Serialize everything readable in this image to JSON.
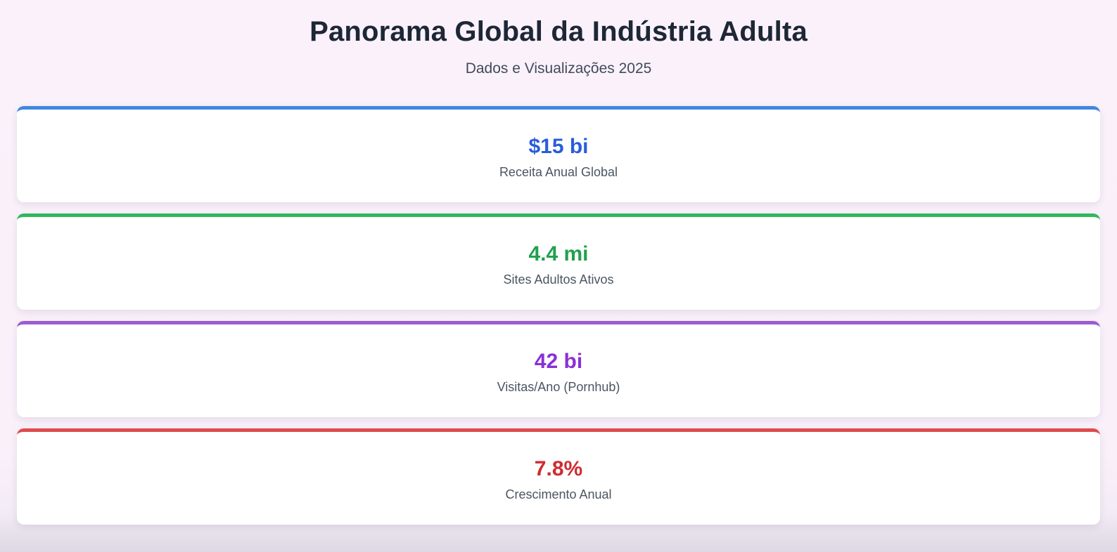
{
  "header": {
    "title": "Panorama Global da Indústria Adulta",
    "subtitle": "Dados e Visualizações 2025"
  },
  "stats": [
    {
      "value": "$15 bi",
      "label": "Receita Anual Global",
      "accent_color": "#4285e0",
      "value_color": "#2a5cdb"
    },
    {
      "value": "4.4 mi",
      "label": "Sites Adultos Ativos",
      "accent_color": "#2eb85c",
      "value_color": "#21a14e"
    },
    {
      "value": "42 bi",
      "label": "Visitas/Ano (Pornhub)",
      "accent_color": "#9d5bd2",
      "value_color": "#8b2fd6"
    },
    {
      "value": "7.8%",
      "label": "Crescimento Anual",
      "accent_color": "#e04b4b",
      "value_color": "#cf2b31"
    }
  ],
  "colors": {
    "background_top": "#faf1fb",
    "background_bottom": "#ddd8e3",
    "card_background": "#ffffff",
    "title_text": "#1d2736",
    "subtitle_text": "#414b58",
    "label_text": "#4b5563"
  }
}
